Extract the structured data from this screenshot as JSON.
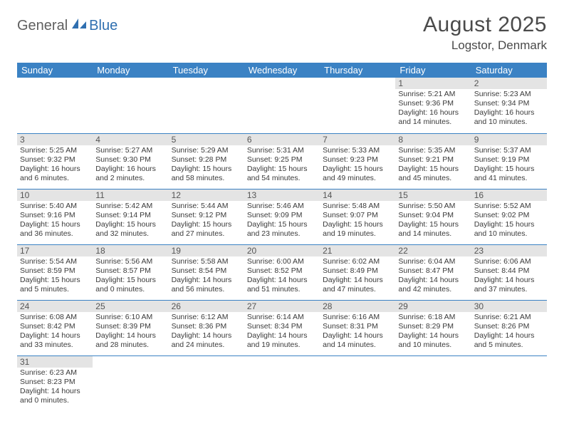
{
  "logo": {
    "part1": "General",
    "part2": "Blue"
  },
  "title": "August 2025",
  "location": "Logstor, Denmark",
  "colors": {
    "header_bg": "#3b82c4",
    "header_text": "#ffffff",
    "daynum_bg": "#e4e4e4",
    "border": "#3b82c4",
    "logo_gray": "#5f5f5f",
    "logo_blue": "#2f6fb0",
    "text": "#3a3a3a"
  },
  "dow": [
    "Sunday",
    "Monday",
    "Tuesday",
    "Wednesday",
    "Thursday",
    "Friday",
    "Saturday"
  ],
  "weeks": [
    [
      null,
      null,
      null,
      null,
      null,
      {
        "n": "1",
        "rise": "5:21 AM",
        "set": "9:36 PM",
        "dayh": "16",
        "daym": "14"
      },
      {
        "n": "2",
        "rise": "5:23 AM",
        "set": "9:34 PM",
        "dayh": "16",
        "daym": "10"
      }
    ],
    [
      {
        "n": "3",
        "rise": "5:25 AM",
        "set": "9:32 PM",
        "dayh": "16",
        "daym": "6"
      },
      {
        "n": "4",
        "rise": "5:27 AM",
        "set": "9:30 PM",
        "dayh": "16",
        "daym": "2"
      },
      {
        "n": "5",
        "rise": "5:29 AM",
        "set": "9:28 PM",
        "dayh": "15",
        "daym": "58"
      },
      {
        "n": "6",
        "rise": "5:31 AM",
        "set": "9:25 PM",
        "dayh": "15",
        "daym": "54"
      },
      {
        "n": "7",
        "rise": "5:33 AM",
        "set": "9:23 PM",
        "dayh": "15",
        "daym": "49"
      },
      {
        "n": "8",
        "rise": "5:35 AM",
        "set": "9:21 PM",
        "dayh": "15",
        "daym": "45"
      },
      {
        "n": "9",
        "rise": "5:37 AM",
        "set": "9:19 PM",
        "dayh": "15",
        "daym": "41"
      }
    ],
    [
      {
        "n": "10",
        "rise": "5:40 AM",
        "set": "9:16 PM",
        "dayh": "15",
        "daym": "36"
      },
      {
        "n": "11",
        "rise": "5:42 AM",
        "set": "9:14 PM",
        "dayh": "15",
        "daym": "32"
      },
      {
        "n": "12",
        "rise": "5:44 AM",
        "set": "9:12 PM",
        "dayh": "15",
        "daym": "27"
      },
      {
        "n": "13",
        "rise": "5:46 AM",
        "set": "9:09 PM",
        "dayh": "15",
        "daym": "23"
      },
      {
        "n": "14",
        "rise": "5:48 AM",
        "set": "9:07 PM",
        "dayh": "15",
        "daym": "19"
      },
      {
        "n": "15",
        "rise": "5:50 AM",
        "set": "9:04 PM",
        "dayh": "15",
        "daym": "14"
      },
      {
        "n": "16",
        "rise": "5:52 AM",
        "set": "9:02 PM",
        "dayh": "15",
        "daym": "10"
      }
    ],
    [
      {
        "n": "17",
        "rise": "5:54 AM",
        "set": "8:59 PM",
        "dayh": "15",
        "daym": "5"
      },
      {
        "n": "18",
        "rise": "5:56 AM",
        "set": "8:57 PM",
        "dayh": "15",
        "daym": "0"
      },
      {
        "n": "19",
        "rise": "5:58 AM",
        "set": "8:54 PM",
        "dayh": "14",
        "daym": "56"
      },
      {
        "n": "20",
        "rise": "6:00 AM",
        "set": "8:52 PM",
        "dayh": "14",
        "daym": "51"
      },
      {
        "n": "21",
        "rise": "6:02 AM",
        "set": "8:49 PM",
        "dayh": "14",
        "daym": "47"
      },
      {
        "n": "22",
        "rise": "6:04 AM",
        "set": "8:47 PM",
        "dayh": "14",
        "daym": "42"
      },
      {
        "n": "23",
        "rise": "6:06 AM",
        "set": "8:44 PM",
        "dayh": "14",
        "daym": "37"
      }
    ],
    [
      {
        "n": "24",
        "rise": "6:08 AM",
        "set": "8:42 PM",
        "dayh": "14",
        "daym": "33"
      },
      {
        "n": "25",
        "rise": "6:10 AM",
        "set": "8:39 PM",
        "dayh": "14",
        "daym": "28"
      },
      {
        "n": "26",
        "rise": "6:12 AM",
        "set": "8:36 PM",
        "dayh": "14",
        "daym": "24"
      },
      {
        "n": "27",
        "rise": "6:14 AM",
        "set": "8:34 PM",
        "dayh": "14",
        "daym": "19"
      },
      {
        "n": "28",
        "rise": "6:16 AM",
        "set": "8:31 PM",
        "dayh": "14",
        "daym": "14"
      },
      {
        "n": "29",
        "rise": "6:18 AM",
        "set": "8:29 PM",
        "dayh": "14",
        "daym": "10"
      },
      {
        "n": "30",
        "rise": "6:21 AM",
        "set": "8:26 PM",
        "dayh": "14",
        "daym": "5"
      }
    ],
    [
      {
        "n": "31",
        "rise": "6:23 AM",
        "set": "8:23 PM",
        "dayh": "14",
        "daym": "0"
      },
      null,
      null,
      null,
      null,
      null,
      null
    ]
  ]
}
